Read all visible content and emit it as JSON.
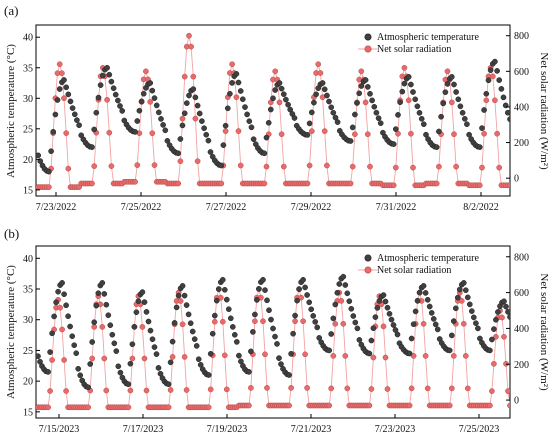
{
  "chart_data": [
    {
      "type": "line",
      "panel_label": "(a)",
      "ylabel": "Atmospheric temperature (°C)",
      "y2label": "Net solar radiation (W/m²)",
      "xlabel": "",
      "ylim": [
        14,
        42
      ],
      "y2lim": [
        -100,
        860
      ],
      "x_range_days": [
        0,
        11
      ],
      "xtick_labels": [
        "7/23/2022",
        "7/25/2022",
        "7/27/2022",
        "7/29/2022",
        "7/31/2022",
        "8/2/2022"
      ],
      "ytick_values": [
        "15",
        "20",
        "25",
        "30",
        "35",
        "40"
      ],
      "y2tick_values": [
        "0",
        "200",
        "400",
        "600",
        "800"
      ],
      "legend": {
        "placement": "top-right"
      },
      "series": [
        {
          "name": "Atmospheric temperature",
          "axis": "left",
          "color": "#404040",
          "daily": [
            {
              "min": 18.0,
              "max": 33.0
            },
            {
              "min": 22.0,
              "max": 35.0
            },
            {
              "min": 24.5,
              "max": 32.5
            },
            {
              "min": 21.0,
              "max": 31.5
            },
            {
              "min": 19.0,
              "max": 34.0
            },
            {
              "min": 21.0,
              "max": 32.5
            },
            {
              "min": 24.0,
              "max": 32.5
            },
            {
              "min": 23.0,
              "max": 33.0
            },
            {
              "min": 22.5,
              "max": 33.5
            },
            {
              "min": 22.0,
              "max": 33.5
            },
            {
              "min": 22.0,
              "max": 36.0
            }
          ]
        },
        {
          "name": "Net solar radiation",
          "axis": "right",
          "color": "#e86a6a",
          "daily": [
            {
              "min": -50,
              "max": 640
            },
            {
              "min": -30,
              "max": 620
            },
            {
              "min": -20,
              "max": 600
            },
            {
              "min": -30,
              "max": 800
            },
            {
              "min": -30,
              "max": 640
            },
            {
              "min": -30,
              "max": 600
            },
            {
              "min": -30,
              "max": 640
            },
            {
              "min": -30,
              "max": 600
            },
            {
              "min": -40,
              "max": 620
            },
            {
              "min": -30,
              "max": 600
            },
            {
              "min": -40,
              "max": 620
            }
          ]
        }
      ]
    },
    {
      "type": "line",
      "panel_label": "(b)",
      "ylabel": "Atmospheric temperature (°C)",
      "y2label": "Net solar radiation (W/m²)",
      "xlabel": "",
      "ylim": [
        14,
        42
      ],
      "y2lim": [
        -100,
        860
      ],
      "x_range_days": [
        0,
        11.8
      ],
      "xtick_labels": [
        "7/15/2023",
        "7/17/2023",
        "7/19/2023",
        "7/21/2023",
        "7/23/2023",
        "7/25/2023"
      ],
      "ytick_values": [
        "15",
        "20",
        "25",
        "30",
        "35",
        "40"
      ],
      "y2tick_values": [
        "0",
        "200",
        "400",
        "600",
        "800"
      ],
      "legend": {
        "placement": "top-right"
      },
      "series": [
        {
          "name": "Atmospheric temperature",
          "axis": "left",
          "color": "#404040",
          "daily": [
            {
              "min": 21.5,
              "max": 36.0
            },
            {
              "min": 19.0,
              "max": 36.0
            },
            {
              "min": 19.5,
              "max": 34.5
            },
            {
              "min": 19.5,
              "max": 35.5
            },
            {
              "min": 21.0,
              "max": 36.5
            },
            {
              "min": 21.5,
              "max": 36.5
            },
            {
              "min": 21.0,
              "max": 36.5
            },
            {
              "min": 25.0,
              "max": 37.0
            },
            {
              "min": 24.5,
              "max": 34.0
            },
            {
              "min": 24.5,
              "max": 35.5
            },
            {
              "min": 25.0,
              "max": 36.0
            },
            {
              "min": 25.0,
              "max": 33.0
            }
          ]
        },
        {
          "name": "Net solar radiation",
          "axis": "right",
          "color": "#e86a6a",
          "daily": [
            {
              "min": -40,
              "max": 560
            },
            {
              "min": -40,
              "max": 580
            },
            {
              "min": -40,
              "max": 580
            },
            {
              "min": -40,
              "max": 600
            },
            {
              "min": -40,
              "max": 620
            },
            {
              "min": -30,
              "max": 620
            },
            {
              "min": -30,
              "max": 620
            },
            {
              "min": -30,
              "max": 600
            },
            {
              "min": -30,
              "max": 580
            },
            {
              "min": -30,
              "max": 600
            },
            {
              "min": -30,
              "max": 600
            },
            {
              "min": -30,
              "max": 500
            }
          ]
        }
      ]
    }
  ]
}
